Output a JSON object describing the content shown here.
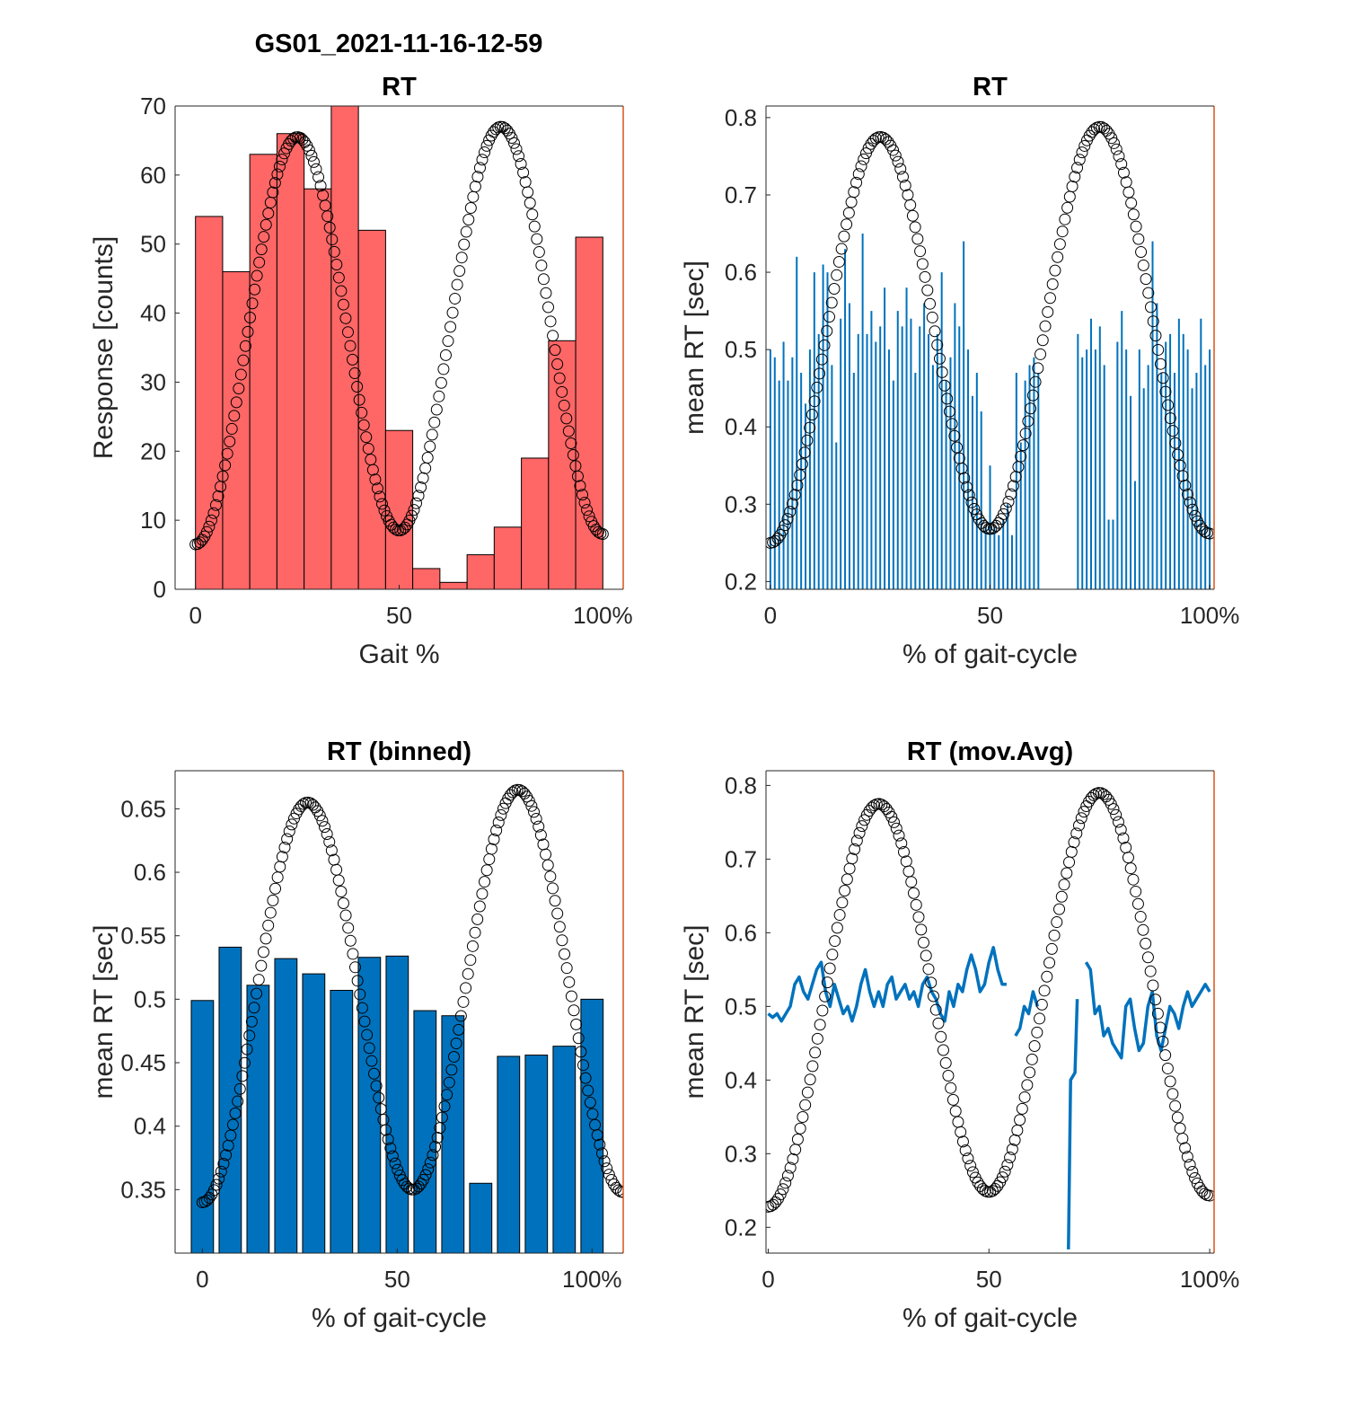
{
  "figure_title": "GS01_2021-11-16-12-59",
  "chart_data": [
    {
      "type": "bar",
      "title": "RT",
      "xlabel": "Gait %",
      "ylabel": "Response [counts]",
      "xlim": [
        -5,
        105
      ],
      "ylim": [
        0,
        70
      ],
      "x_ticks": [
        0,
        50,
        100
      ],
      "x_tick_labels": [
        "0",
        "50",
        "100%"
      ],
      "y_ticks": [
        0,
        10,
        20,
        30,
        40,
        50,
        60,
        70
      ],
      "y_tick_labels": [
        "0",
        "10",
        "20",
        "30",
        "40",
        "50",
        "60",
        "70"
      ],
      "bin_edges": [
        0,
        6.67,
        13.33,
        20,
        26.67,
        33.33,
        40,
        46.67,
        53.33,
        60,
        66.67,
        73.33,
        80,
        86.67,
        93.33,
        100
      ],
      "values": [
        54,
        46,
        63,
        66,
        58,
        70,
        52,
        23,
        3,
        1,
        5,
        9,
        19,
        36,
        51
      ],
      "bar_color": "#ff6666",
      "overlay": {
        "marker": "circle",
        "color": "#000000",
        "x_range": [
          0,
          100
        ],
        "min_start": 6.5,
        "peak1": 65.5,
        "trough": 8.5,
        "peak2": 67,
        "min_end": 8
      }
    },
    {
      "type": "bar",
      "title": "RT",
      "xlabel": "% of gait-cycle",
      "ylabel": "mean RT [sec]",
      "xlim": [
        -1,
        101
      ],
      "ylim": [
        0.19,
        0.815
      ],
      "x_ticks": [
        0,
        50,
        100
      ],
      "x_tick_labels": [
        "0",
        "50",
        "100%"
      ],
      "y_ticks": [
        0.2,
        0.3,
        0.4,
        0.5,
        0.6,
        0.7,
        0.8
      ],
      "y_tick_labels": [
        "0.2",
        "0.3",
        "0.4",
        "0.5",
        "0.6",
        "0.7",
        "0.8"
      ],
      "x": [
        0,
        1,
        2,
        3,
        4,
        5,
        6,
        7,
        8,
        9,
        10,
        11,
        12,
        13,
        14,
        15,
        16,
        17,
        18,
        19,
        20,
        21,
        22,
        23,
        24,
        25,
        26,
        27,
        28,
        29,
        30,
        31,
        32,
        33,
        34,
        35,
        36,
        37,
        38,
        39,
        40,
        41,
        42,
        43,
        44,
        45,
        46,
        47,
        48,
        49,
        50,
        51,
        52,
        53,
        54,
        55,
        56,
        57,
        58,
        59,
        60,
        61,
        70,
        71,
        72,
        73,
        74,
        75,
        76,
        77,
        78,
        79,
        80,
        81,
        82,
        83,
        84,
        85,
        86,
        87,
        88,
        89,
        90,
        91,
        92,
        93,
        94,
        95,
        96,
        97,
        98,
        99,
        100
      ],
      "values": [
        0.5,
        0.49,
        0.46,
        0.51,
        0.46,
        0.49,
        0.62,
        0.47,
        0.43,
        0.5,
        0.6,
        0.52,
        0.61,
        0.6,
        0.48,
        0.38,
        0.54,
        0.63,
        0.56,
        0.47,
        0.52,
        0.65,
        0.52,
        0.55,
        0.51,
        0.53,
        0.58,
        0.5,
        0.46,
        0.55,
        0.53,
        0.58,
        0.54,
        0.47,
        0.53,
        0.56,
        0.52,
        0.48,
        0.52,
        0.6,
        0.46,
        0.49,
        0.56,
        0.53,
        0.64,
        0.5,
        0.44,
        0.47,
        0.42,
        0.27,
        0.35,
        0.27,
        0.26,
        0.28,
        0.3,
        0.26,
        0.47,
        0.38,
        0.46,
        0.48,
        0.49,
        0.47,
        0.52,
        0.49,
        0.5,
        0.54,
        0.5,
        0.53,
        0.48,
        0.28,
        0.28,
        0.51,
        0.55,
        0.5,
        0.44,
        0.33,
        0.5,
        0.45,
        0.48,
        0.64,
        0.56,
        0.47,
        0.51,
        0.52,
        0.47,
        0.54,
        0.52,
        0.5,
        0.45,
        0.47,
        0.54,
        0.48,
        0.5
      ],
      "bar_color": "#0072bd",
      "overlay": {
        "marker": "circle",
        "color": "#000000",
        "x_range": [
          0,
          100
        ],
        "min_start": 0.25,
        "peak1": 0.775,
        "trough": 0.268,
        "peak2": 0.788,
        "min_end": 0.262
      }
    },
    {
      "type": "bar",
      "title": "RT (binned)",
      "xlabel": "% of gait-cycle",
      "ylabel": "mean RT [sec]",
      "xlim": [
        -7,
        108
      ],
      "ylim": [
        0.3,
        0.68
      ],
      "x_ticks": [
        0,
        50,
        100
      ],
      "x_tick_labels": [
        "0",
        "50",
        "100%"
      ],
      "y_ticks": [
        0.35,
        0.4,
        0.45,
        0.5,
        0.55,
        0.6,
        0.65
      ],
      "y_tick_labels": [
        "0.35",
        "0.4",
        "0.45",
        "0.5",
        "0.55",
        "0.6",
        "0.65"
      ],
      "x": [
        0,
        7.14,
        14.29,
        21.43,
        28.57,
        35.71,
        42.86,
        50,
        57.14,
        64.29,
        71.43,
        78.57,
        85.71,
        92.86,
        100
      ],
      "values": [
        0.499,
        0.541,
        0.511,
        0.532,
        0.52,
        0.507,
        0.533,
        0.534,
        0.491,
        0.487,
        0.355,
        0.455,
        0.456,
        0.463,
        0.5
      ],
      "bar_color": "#0072bd",
      "overlay": {
        "marker": "circle",
        "color": "#000000",
        "x_range": [
          0,
          108
        ],
        "min_start": 0.34,
        "peak1": 0.655,
        "trough": 0.35,
        "peak2": 0.665,
        "min_end": 0.348
      }
    },
    {
      "type": "line",
      "title": "RT (mov.Avg)",
      "xlabel": "% of gait-cycle",
      "ylabel": "mean RT [sec]",
      "xlim": [
        -0.5,
        101
      ],
      "ylim": [
        0.165,
        0.82
      ],
      "x_ticks": [
        0,
        50,
        100
      ],
      "x_tick_labels": [
        "0",
        "50",
        "100%"
      ],
      "y_ticks": [
        0.2,
        0.3,
        0.4,
        0.5,
        0.6,
        0.7,
        0.8
      ],
      "y_tick_labels": [
        "0.2",
        "0.3",
        "0.4",
        "0.5",
        "0.6",
        "0.7",
        "0.8"
      ],
      "series": [
        {
          "color": "#0072bd",
          "segments": [
            [
              [
                0,
                0.49
              ],
              [
                1,
                0.485
              ],
              [
                2,
                0.49
              ],
              [
                3,
                0.48
              ],
              [
                4,
                0.49
              ],
              [
                5,
                0.5
              ],
              [
                6,
                0.53
              ],
              [
                7,
                0.54
              ],
              [
                8,
                0.52
              ],
              [
                9,
                0.51
              ],
              [
                10,
                0.53
              ],
              [
                11,
                0.55
              ],
              [
                12,
                0.56
              ],
              [
                13,
                0.52
              ],
              [
                14,
                0.5
              ],
              [
                15,
                0.53
              ],
              [
                16,
                0.51
              ],
              [
                17,
                0.49
              ],
              [
                18,
                0.5
              ],
              [
                19,
                0.48
              ],
              [
                20,
                0.5
              ],
              [
                21,
                0.53
              ],
              [
                22,
                0.55
              ],
              [
                23,
                0.52
              ],
              [
                24,
                0.5
              ],
              [
                25,
                0.52
              ],
              [
                26,
                0.5
              ],
              [
                27,
                0.53
              ],
              [
                28,
                0.54
              ],
              [
                29,
                0.51
              ],
              [
                30,
                0.52
              ],
              [
                31,
                0.53
              ],
              [
                32,
                0.51
              ],
              [
                33,
                0.52
              ],
              [
                34,
                0.5
              ],
              [
                35,
                0.53
              ],
              [
                36,
                0.54
              ],
              [
                37,
                0.52
              ],
              [
                38,
                0.51
              ],
              [
                39,
                0.49
              ],
              [
                40,
                0.48
              ],
              [
                41,
                0.52
              ],
              [
                42,
                0.5
              ],
              [
                43,
                0.53
              ],
              [
                44,
                0.52
              ],
              [
                45,
                0.55
              ],
              [
                46,
                0.57
              ],
              [
                47,
                0.55
              ],
              [
                48,
                0.52
              ],
              [
                49,
                0.53
              ],
              [
                50,
                0.56
              ],
              [
                51,
                0.58
              ],
              [
                52,
                0.55
              ],
              [
                53,
                0.53
              ],
              [
                54,
                0.53
              ]
            ],
            [
              [
                56,
                0.46
              ],
              [
                57,
                0.47
              ],
              [
                58,
                0.5
              ],
              [
                59,
                0.49
              ],
              [
                60,
                0.52
              ],
              [
                61,
                0.5
              ]
            ],
            [
              [
                68,
                0.17
              ],
              [
                68.5,
                0.4
              ],
              [
                69.5,
                0.41
              ],
              [
                70,
                0.51
              ]
            ],
            [
              [
                72,
                0.56
              ],
              [
                73,
                0.55
              ],
              [
                74,
                0.49
              ],
              [
                75,
                0.5
              ],
              [
                76,
                0.46
              ],
              [
                77,
                0.47
              ],
              [
                78,
                0.45
              ],
              [
                79,
                0.44
              ],
              [
                80,
                0.43
              ],
              [
                81,
                0.5
              ],
              [
                82,
                0.51
              ],
              [
                83,
                0.47
              ],
              [
                84,
                0.44
              ],
              [
                85,
                0.45
              ],
              [
                86,
                0.5
              ],
              [
                87,
                0.52
              ],
              [
                88,
                0.46
              ],
              [
                89,
                0.44
              ],
              [
                90,
                0.47
              ],
              [
                91,
                0.5
              ],
              [
                92,
                0.49
              ],
              [
                93,
                0.47
              ],
              [
                94,
                0.5
              ],
              [
                95,
                0.52
              ],
              [
                96,
                0.5
              ],
              [
                97,
                0.51
              ],
              [
                98,
                0.52
              ],
              [
                99,
                0.53
              ],
              [
                100,
                0.52
              ]
            ]
          ]
        }
      ],
      "overlay": {
        "marker": "circle",
        "color": "#000000",
        "x_range": [
          0,
          100
        ],
        "min_start": 0.228,
        "peak1": 0.775,
        "trough": 0.248,
        "peak2": 0.79,
        "min_end": 0.243
      }
    }
  ]
}
